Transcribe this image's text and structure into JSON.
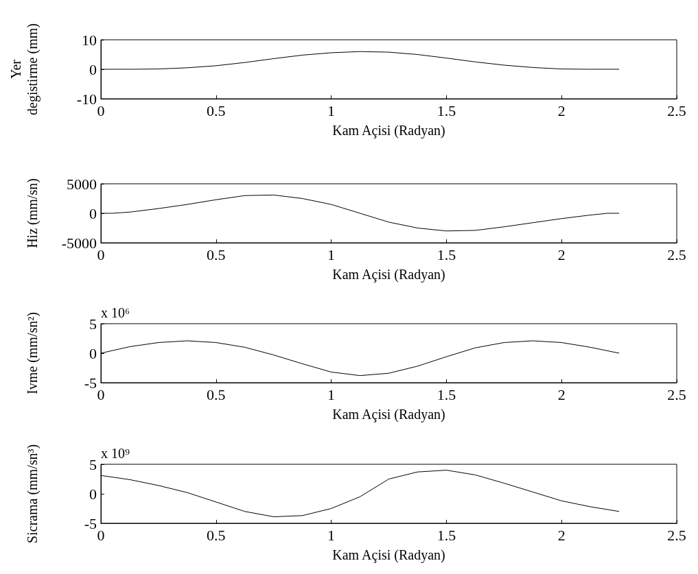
{
  "chart_data": [
    {
      "type": "line",
      "xlabel": "Kam Açisi (Radyan)",
      "ylabel": "Yer\ndegistirme (mm)",
      "xlim": [
        0,
        2.5
      ],
      "xticks": [
        0,
        0.5,
        1,
        1.5,
        2,
        2.5
      ],
      "ylim": [
        -10,
        10
      ],
      "yticks": [
        -10,
        0,
        10
      ],
      "grid": false,
      "x": [
        0,
        0.125,
        0.25,
        0.375,
        0.5,
        0.625,
        0.75,
        0.875,
        1.0,
        1.125,
        1.25,
        1.375,
        1.5,
        1.625,
        1.75,
        1.875,
        2.0,
        2.125,
        2.25
      ],
      "series": [
        {
          "color": "#000000",
          "values": [
            0,
            0,
            0.1,
            0.5,
            1.2,
            2.3,
            3.6,
            4.8,
            5.6,
            6,
            5.8,
            5.0,
            3.8,
            2.5,
            1.4,
            0.6,
            0.1,
            0,
            0
          ]
        }
      ]
    },
    {
      "type": "line",
      "xlabel": "Kam Açisi (Radyan)",
      "ylabel": "Hiz (mm/sn)",
      "xlim": [
        0,
        2.5
      ],
      "xticks": [
        0,
        0.5,
        1,
        1.5,
        2,
        2.5
      ],
      "ylim": [
        -5000,
        5000
      ],
      "yticks": [
        -5000,
        0,
        5000
      ],
      "grid": false,
      "x": [
        0,
        0.05,
        0.125,
        0.25,
        0.375,
        0.5,
        0.625,
        0.75,
        0.875,
        1.0,
        1.125,
        1.25,
        1.375,
        1.5,
        1.625,
        1.75,
        1.875,
        2.0,
        2.125,
        2.2,
        2.25
      ],
      "series": [
        {
          "color": "#000000",
          "values": [
            0,
            0,
            200,
            800,
            1500,
            2300,
            3000,
            3100,
            2500,
            1500,
            0,
            -1500,
            -2500,
            -3000,
            -2900,
            -2300,
            -1600,
            -900,
            -300,
            0,
            0
          ]
        }
      ]
    },
    {
      "type": "line",
      "xlabel": "Kam Açisi (Radyan)",
      "ylabel": "Ivme (mm/sn²)",
      "annotations": [
        "x 10⁶"
      ],
      "xlim": [
        0,
        2.5
      ],
      "xticks": [
        0,
        0.5,
        1,
        1.5,
        2,
        2.5
      ],
      "ylim": [
        -5,
        5
      ],
      "yticks": [
        -5,
        0,
        5
      ],
      "grid": false,
      "x": [
        0,
        0.125,
        0.25,
        0.375,
        0.5,
        0.625,
        0.75,
        0.875,
        1.0,
        1.125,
        1.25,
        1.375,
        1.5,
        1.625,
        1.75,
        1.875,
        2.0,
        2.125,
        2.25
      ],
      "series": [
        {
          "color": "#000000",
          "values": [
            0,
            1.1,
            1.8,
            2.1,
            1.8,
            1.0,
            -0.3,
            -1.8,
            -3.2,
            -3.8,
            -3.4,
            -2.2,
            -0.6,
            0.9,
            1.8,
            2.1,
            1.8,
            1.0,
            0
          ]
        }
      ]
    },
    {
      "type": "line",
      "xlabel": "Kam Açisi (Radyan)",
      "ylabel": "Sicrama (mm/sn³)",
      "annotations": [
        "x 10⁹"
      ],
      "xlim": [
        0,
        2.5
      ],
      "xticks": [
        0,
        0.5,
        1,
        1.5,
        2,
        2.5
      ],
      "ylim": [
        -5,
        5
      ],
      "yticks": [
        -5,
        0,
        5
      ],
      "grid": false,
      "x": [
        0,
        0.125,
        0.25,
        0.375,
        0.5,
        0.625,
        0.75,
        0.875,
        1.0,
        1.125,
        1.25,
        1.375,
        1.5,
        1.625,
        1.75,
        1.875,
        2.0,
        2.125,
        2.25
      ],
      "series": [
        {
          "color": "#000000",
          "values": [
            3.1,
            2.4,
            1.4,
            0.2,
            -1.4,
            -3.0,
            -3.9,
            -3.7,
            -2.5,
            -0.5,
            2.5,
            3.7,
            4.0,
            3.2,
            1.8,
            0.3,
            -1.2,
            -2.2,
            -3.0
          ]
        }
      ]
    }
  ]
}
